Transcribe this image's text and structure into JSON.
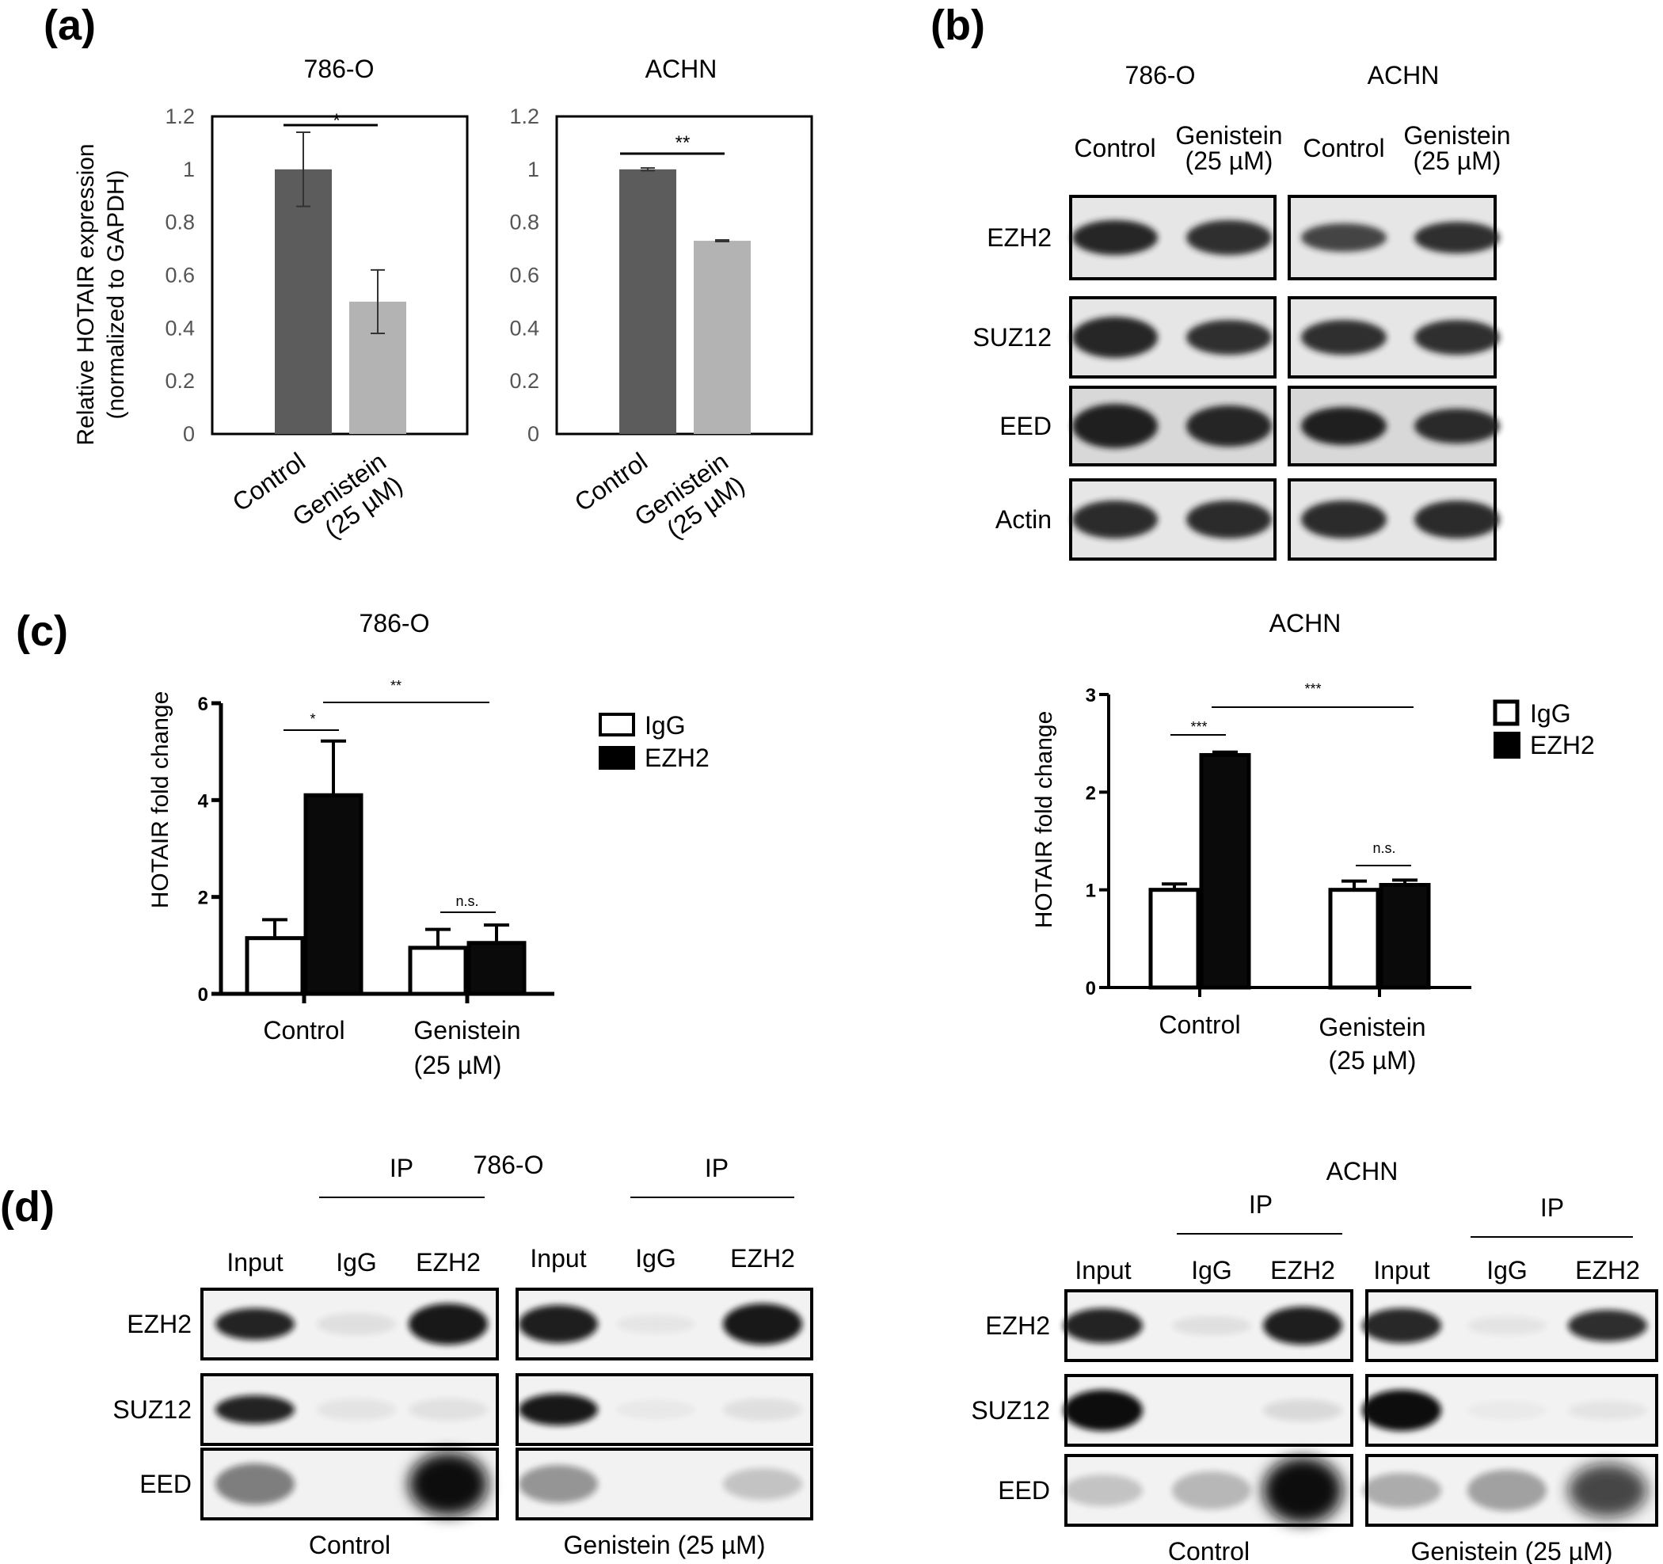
{
  "panels": {
    "a": "(a)",
    "b": "(b)",
    "c": "(c)",
    "d": "(d)"
  },
  "chart_data": [
    {
      "type": "bar",
      "panel": "a",
      "title": "786-O",
      "ylabel": "Relative HOTAIR expression (normalized to GAPDH)",
      "ylabel_lines": [
        "Relative HOTAIR expression",
        "(normalized to GAPDH)"
      ],
      "categories": [
        "Control",
        "Genistein (25 µM)"
      ],
      "category_lines": [
        [
          "Control"
        ],
        [
          "Genistein",
          "(25 µM)"
        ]
      ],
      "values": [
        1.0,
        0.5
      ],
      "errors": [
        0.14,
        0.12
      ],
      "colors": [
        "#5c5c5c",
        "#b3b3b3"
      ],
      "ylim": [
        0,
        1.2
      ],
      "yticks": [
        "0",
        "0.2",
        "0.4",
        "0.6",
        "0.8",
        "1",
        "1.2"
      ],
      "significance": "*"
    },
    {
      "type": "bar",
      "panel": "a",
      "title": "ACHN",
      "categories": [
        "Control",
        "Genistein (25 µM)"
      ],
      "category_lines": [
        [
          "Control"
        ],
        [
          "Genistein",
          "(25 µM)"
        ]
      ],
      "values": [
        1.0,
        0.73
      ],
      "errors": [
        0.005,
        0.003
      ],
      "colors": [
        "#5c5c5c",
        "#b3b3b3"
      ],
      "ylim": [
        0,
        1.2
      ],
      "yticks": [
        "0",
        "0.2",
        "0.4",
        "0.6",
        "0.8",
        "1",
        "1.2"
      ],
      "significance": "**"
    },
    {
      "type": "bar",
      "panel": "c",
      "title": "786-O",
      "ylabel": "HOTAIR fold change",
      "categories": [
        "Control",
        "Genistein (25 µM)"
      ],
      "category_lines": [
        [
          "Control"
        ],
        [
          "Genistein",
          "(25 µM)"
        ]
      ],
      "series": [
        {
          "name": "IgG",
          "values": [
            1.15,
            0.95
          ],
          "errors": [
            0.38,
            0.38
          ],
          "color": "#ffffff"
        },
        {
          "name": "EZH2",
          "values": [
            4.1,
            1.05
          ],
          "errors": [
            1.12,
            0.37
          ],
          "color": "#0a0a0a"
        }
      ],
      "ylim": [
        0,
        6
      ],
      "yticks": [
        "0",
        "2",
        "4",
        "6"
      ],
      "significance": {
        "control_pair": "*",
        "across": "**",
        "genistein_pair": "n.s."
      }
    },
    {
      "type": "bar",
      "panel": "c",
      "title": "ACHN",
      "ylabel": "HOTAIR fold change",
      "categories": [
        "Control",
        "Genistein (25 µM)"
      ],
      "category_lines": [
        [
          "Control"
        ],
        [
          "Genistein",
          "(25 µM)"
        ]
      ],
      "series": [
        {
          "name": "IgG",
          "values": [
            1.0,
            1.0
          ],
          "errors": [
            0.06,
            0.09
          ],
          "color": "#ffffff"
        },
        {
          "name": "EZH2",
          "values": [
            2.38,
            1.05
          ],
          "errors": [
            0.03,
            0.05
          ],
          "color": "#0a0a0a"
        }
      ],
      "ylim": [
        0,
        3
      ],
      "yticks": [
        "0",
        "1",
        "2",
        "3"
      ],
      "significance": {
        "control_pair": "***",
        "across": "***",
        "genistein_pair": "n.s."
      }
    }
  ],
  "blot_b": {
    "cell_lines": [
      "786-O",
      "ACHN"
    ],
    "lanes": [
      "Control",
      "Genistein\n(25 µM)"
    ],
    "lane_lines": [
      [
        "Control"
      ],
      [
        "Genistein",
        "(25 µM)"
      ]
    ],
    "proteins": [
      "EZH2",
      "SUZ12",
      "EED",
      "Actin"
    ]
  },
  "blot_d": {
    "cell_lines": [
      "786-O",
      "ACHN"
    ],
    "ip_label": "IP",
    "lanes": [
      "Input",
      "IgG",
      "EZH2"
    ],
    "proteins": [
      "EZH2",
      "SUZ12",
      "EED"
    ],
    "conditions": [
      "Control",
      "Genistein (25 µM)"
    ]
  }
}
